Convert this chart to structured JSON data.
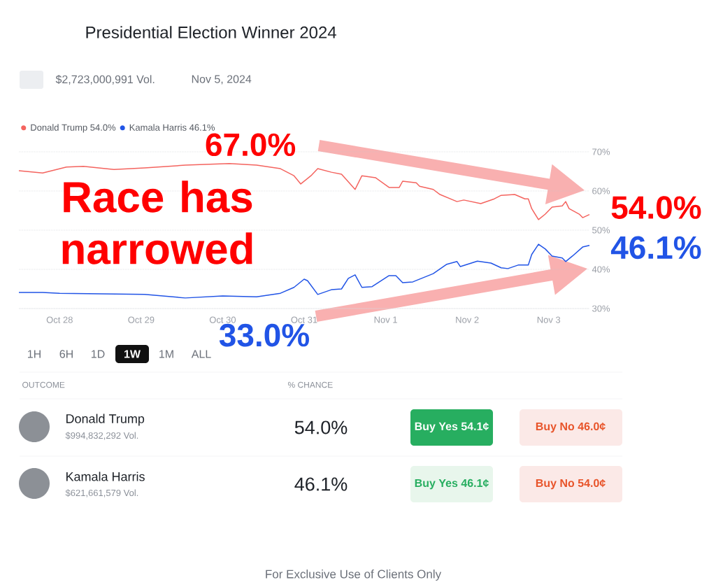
{
  "chart_data": {
    "type": "line",
    "title": "Presidential Election Winner 2024",
    "xlim": [
      "2024-10-27T12:00",
      "2024-11-03T12:00"
    ],
    "xticks": [
      {
        "value": "2024-10-28",
        "label": "Oct 28"
      },
      {
        "value": "2024-10-29",
        "label": "Oct 29"
      },
      {
        "value": "2024-10-30",
        "label": "Oct 30"
      },
      {
        "value": "2024-10-31",
        "label": "Oct 31"
      },
      {
        "value": "2024-11-01",
        "label": "Nov 1"
      },
      {
        "value": "2024-11-02",
        "label": "Nov 2"
      },
      {
        "value": "2024-11-03",
        "label": "Nov 3"
      }
    ],
    "ylim": [
      30,
      70
    ],
    "yticks": [
      {
        "value": 30,
        "label": "30%"
      },
      {
        "value": 40,
        "label": "40%"
      },
      {
        "value": 50,
        "label": "50%"
      },
      {
        "value": 60,
        "label": "60%"
      },
      {
        "value": 70,
        "label": "70%"
      }
    ],
    "grid": "y",
    "legend": "top left",
    "marker": "none",
    "line_style": "solid",
    "series": [
      {
        "name": "Donald Trump 54.0%",
        "color": "#f4645f",
        "x": [
          "2024-10-27T12:00",
          "2024-10-27T19:00",
          "2024-10-28T02:00",
          "2024-10-28T07:00",
          "2024-10-28T16:00",
          "2024-10-29T01:00",
          "2024-10-29T13:00",
          "2024-10-30T02:00",
          "2024-10-30T10:00",
          "2024-10-30T17:00",
          "2024-10-30T21:00",
          "2024-10-30T23:00",
          "2024-10-31T02:00",
          "2024-10-31T04:00",
          "2024-10-31T08:00",
          "2024-10-31T11:00",
          "2024-10-31T15:00",
          "2024-10-31T17:00",
          "2024-10-31T21:00",
          "2024-11-01T01:00",
          "2024-11-01T04:00",
          "2024-11-01T05:00",
          "2024-11-01T09:00",
          "2024-11-01T10:00",
          "2024-11-01T14:00",
          "2024-11-01T16:00",
          "2024-11-01T21:00",
          "2024-11-01T23:00",
          "2024-11-02T04:00",
          "2024-11-02T08:00",
          "2024-11-02T10:00",
          "2024-11-02T14:00",
          "2024-11-02T17:00",
          "2024-11-02T18:00",
          "2024-11-02T19:00",
          "2024-11-02T21:00",
          "2024-11-02T23:00",
          "2024-11-03T01:00",
          "2024-11-03T04:00",
          "2024-11-03T05:00",
          "2024-11-03T06:00",
          "2024-11-03T09:00",
          "2024-11-03T10:00",
          "2024-11-03T12:00"
        ],
        "values": [
          65.2,
          64.6,
          66.1,
          66.3,
          65.5,
          65.9,
          66.6,
          67.0,
          66.6,
          65.7,
          63.9,
          61.8,
          63.9,
          65.7,
          64.8,
          64.3,
          60.4,
          63.9,
          63.4,
          60.9,
          60.9,
          62.5,
          62.1,
          61.2,
          60.4,
          59.1,
          57.3,
          57.7,
          56.8,
          58.0,
          58.9,
          59.1,
          58.0,
          58.0,
          55.5,
          52.7,
          54.1,
          55.9,
          56.2,
          57.3,
          55.5,
          54.1,
          53.2,
          54.0
        ]
      },
      {
        "name": "Kamala Harris 46.1%",
        "color": "#2154e6",
        "x": [
          "2024-10-27T12:00",
          "2024-10-27T19:00",
          "2024-10-28T00:00",
          "2024-10-29T01:00",
          "2024-10-29T13:00",
          "2024-10-30T00:00",
          "2024-10-30T10:00",
          "2024-10-30T17:00",
          "2024-10-30T21:00",
          "2024-10-31T00:00",
          "2024-10-31T01:00",
          "2024-10-31T04:00",
          "2024-10-31T08:00",
          "2024-10-31T11:00",
          "2024-10-31T13:00",
          "2024-10-31T15:00",
          "2024-10-31T17:00",
          "2024-10-31T20:00",
          "2024-11-01T01:00",
          "2024-11-01T03:00",
          "2024-11-01T05:00",
          "2024-11-01T08:00",
          "2024-11-01T14:00",
          "2024-11-01T18:00",
          "2024-11-01T21:00",
          "2024-11-01T22:00",
          "2024-11-02T03:00",
          "2024-11-02T07:00",
          "2024-11-02T10:00",
          "2024-11-02T12:00",
          "2024-11-02T15:00",
          "2024-11-02T18:00",
          "2024-11-02T19:00",
          "2024-11-02T21:00",
          "2024-11-02T23:00",
          "2024-11-03T01:00",
          "2024-11-03T04:00",
          "2024-11-03T05:00",
          "2024-11-03T07:00",
          "2024-11-03T10:00",
          "2024-11-03T12:00"
        ],
        "values": [
          34.1,
          34.1,
          33.9,
          33.6,
          32.7,
          33.2,
          33.0,
          33.9,
          35.4,
          37.5,
          37.1,
          33.6,
          34.8,
          35.0,
          37.7,
          38.6,
          35.4,
          35.6,
          38.4,
          38.4,
          36.6,
          36.8,
          38.9,
          41.3,
          42.0,
          40.7,
          42.1,
          41.6,
          40.4,
          40.2,
          41.1,
          41.1,
          43.8,
          46.4,
          45.2,
          43.4,
          42.9,
          42.0,
          43.4,
          45.7,
          46.1
        ]
      }
    ],
    "annotations": [
      {
        "text": "67.0%",
        "x": "2024-10-30T02:00",
        "y": 67.0
      },
      {
        "text": "54.0%",
        "x": "2024-11-03T12:00",
        "y": 54.0
      },
      {
        "text": "46.1%",
        "x": "2024-11-03T12:00",
        "y": 46.1
      },
      {
        "text": "33.0%",
        "x": "2024-10-30T10:00",
        "y": 33.0
      },
      "Race has narrowed",
      "$2,723,000,991 Vol.",
      "Nov 5, 2024",
      "1H",
      "6H",
      "1D",
      "1W",
      "1M",
      "ALL",
      "OUTCOME",
      "% CHANCE",
      "Donald Trump",
      "$994,832,292 Vol.",
      "54.0%",
      "Buy Yes 54.1¢",
      "Buy No 46.0¢",
      "Kamala Harris",
      "$621,661,579 Vol.",
      "46.1%",
      "Buy Yes 46.1¢",
      "Buy No 54.0¢",
      "For Exclusive Use of Clients Only"
    ]
  }
}
